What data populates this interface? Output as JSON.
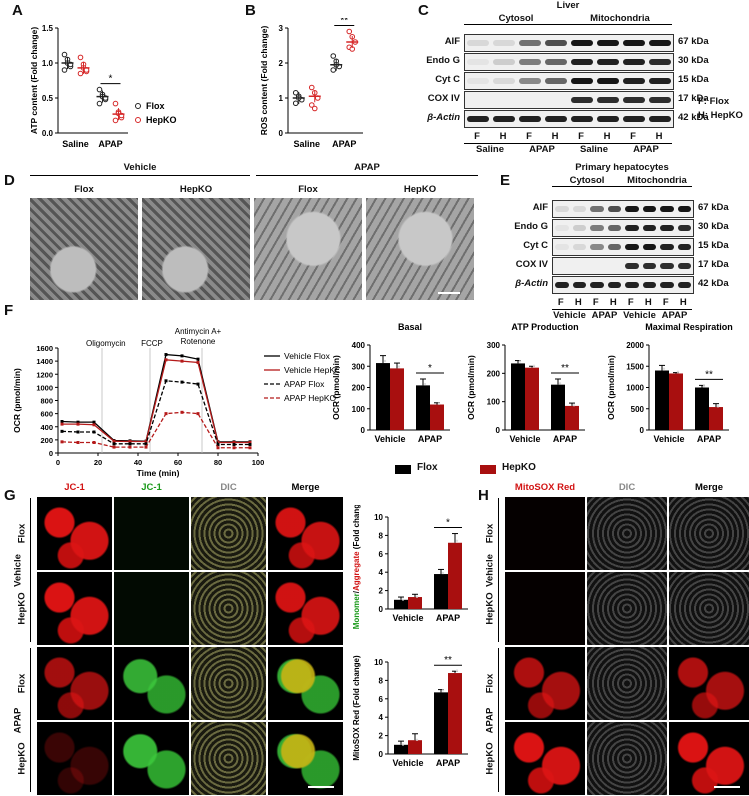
{
  "panels": {
    "A": "A",
    "B": "B",
    "C": "C",
    "D": "D",
    "E": "E",
    "F": "F",
    "G": "G",
    "H": "H"
  },
  "chart_data": [
    {
      "id": "A",
      "type": "scatter",
      "ylabel": "ATP content (Fold change)",
      "ylim": [
        0,
        1.5
      ],
      "yticks": [
        "0.0",
        "0.5",
        "1.0",
        "1.5"
      ],
      "categories": [
        "Saline",
        "APAP"
      ],
      "series": [
        {
          "name": "Flox",
          "color": "#222222",
          "mean": [
            1.0,
            0.52
          ],
          "points": [
            [
              1.12,
              1.05,
              0.95,
              0.9,
              1.0,
              0.98
            ],
            [
              0.62,
              0.55,
              0.48,
              0.42,
              0.52,
              0.5
            ]
          ]
        },
        {
          "name": "HepKO",
          "color": "#d62728",
          "mean": [
            0.93,
            0.27
          ],
          "points": [
            [
              1.08,
              0.98,
              0.88,
              0.85,
              0.93,
              0.9
            ],
            [
              0.42,
              0.3,
              0.22,
              0.18,
              0.28,
              0.25
            ]
          ]
        }
      ],
      "significance": [
        {
          "between": "APAP",
          "label": "*"
        }
      ],
      "legend": [
        "Flox",
        "HepKO"
      ]
    },
    {
      "id": "B",
      "type": "scatter",
      "ylabel": "ROS content (Fold change)",
      "ylim": [
        0,
        3
      ],
      "yticks": [
        "0",
        "1",
        "2",
        "3"
      ],
      "categories": [
        "Saline",
        "APAP"
      ],
      "series": [
        {
          "name": "Flox",
          "color": "#222222",
          "mean": [
            1.0,
            1.95
          ],
          "points": [
            [
              1.15,
              1.05,
              0.95,
              0.85,
              1.0
            ],
            [
              2.2,
              2.05,
              1.9,
              1.8,
              1.95
            ]
          ]
        },
        {
          "name": "HepKO",
          "color": "#d62728",
          "mean": [
            1.05,
            2.6
          ],
          "points": [
            [
              1.3,
              1.15,
              1.0,
              0.8,
              0.7
            ],
            [
              2.9,
              2.75,
              2.6,
              2.45,
              2.4
            ]
          ]
        }
      ],
      "significance": [
        {
          "between": "APAP",
          "label": "**"
        }
      ]
    },
    {
      "id": "F-Basal",
      "type": "bar",
      "title": "Basal",
      "ylabel": "OCR (pmol/min)",
      "ylim": [
        0,
        400
      ],
      "yticks": [
        "0",
        "100",
        "200",
        "300",
        "400"
      ],
      "categories": [
        "Vehicle",
        "APAP"
      ],
      "series": [
        {
          "name": "Flox",
          "color": "#000000",
          "values": [
            315,
            210
          ],
          "err": [
            35,
            30
          ]
        },
        {
          "name": "HepKO",
          "color": "#a80f0f",
          "values": [
            290,
            120
          ],
          "err": [
            25,
            8
          ]
        }
      ],
      "significance": [
        {
          "between": "APAP",
          "label": "*"
        }
      ]
    },
    {
      "id": "F-ATP",
      "type": "bar",
      "title": "ATP Production",
      "ylabel": "OCR (pmol/min)",
      "ylim": [
        0,
        300
      ],
      "yticks": [
        "0",
        "100",
        "200",
        "300"
      ],
      "categories": [
        "Vehicle",
        "APAP"
      ],
      "series": [
        {
          "name": "Flox",
          "color": "#000000",
          "values": [
            235,
            160
          ],
          "err": [
            10,
            20
          ]
        },
        {
          "name": "HepKO",
          "color": "#a80f0f",
          "values": [
            220,
            85
          ],
          "err": [
            5,
            10
          ]
        }
      ],
      "significance": [
        {
          "between": "APAP",
          "label": "**"
        }
      ]
    },
    {
      "id": "F-Max",
      "type": "bar",
      "title": "Maximal Respiration",
      "ylabel": "OCR (pmol/min)",
      "ylim": [
        0,
        2000
      ],
      "yticks": [
        "0",
        "500",
        "1000",
        "1500",
        "2000"
      ],
      "categories": [
        "Vehicle",
        "APAP"
      ],
      "series": [
        {
          "name": "Flox",
          "color": "#000000",
          "values": [
            1400,
            1000
          ],
          "err": [
            120,
            50
          ]
        },
        {
          "name": "HepKO",
          "color": "#a80f0f",
          "values": [
            1330,
            540
          ],
          "err": [
            20,
            80
          ]
        }
      ],
      "significance": [
        {
          "between": "APAP",
          "label": "**"
        }
      ]
    },
    {
      "id": "F-Timecourse",
      "type": "line",
      "xlabel": "Time (min)",
      "ylabel": "OCR (pmol/min)",
      "xlim": [
        0,
        100
      ],
      "ylim": [
        0,
        1600
      ],
      "xticks": [
        "0",
        "20",
        "40",
        "60",
        "80",
        "100"
      ],
      "yticks": [
        "0",
        "200",
        "400",
        "600",
        "800",
        "1000",
        "1200",
        "1400",
        "1600"
      ],
      "annotations": [
        "Oligomycin",
        "FCCP",
        "Antimycin A+ Rotenone"
      ],
      "x": [
        2,
        10,
        18,
        28,
        36,
        44,
        54,
        62,
        70,
        80,
        88,
        96
      ],
      "series": [
        {
          "name": "Vehicle Flox",
          "color": "#000000",
          "dash": false,
          "values": [
            480,
            470,
            470,
            190,
            185,
            180,
            1500,
            1480,
            1430,
            170,
            170,
            170
          ]
        },
        {
          "name": "Vehicle HepKO",
          "color": "#b51a1a",
          "dash": false,
          "values": [
            440,
            440,
            430,
            180,
            175,
            175,
            1420,
            1400,
            1380,
            160,
            160,
            160
          ]
        },
        {
          "name": "APAP Flox",
          "color": "#000000",
          "dash": true,
          "values": [
            330,
            320,
            320,
            140,
            140,
            140,
            1100,
            1080,
            1050,
            130,
            130,
            130
          ]
        },
        {
          "name": "APAP HepKO",
          "color": "#b51a1a",
          "dash": true,
          "values": [
            170,
            160,
            160,
            90,
            90,
            90,
            600,
            620,
            600,
            80,
            80,
            80
          ]
        }
      ]
    },
    {
      "id": "G-ratio",
      "type": "bar",
      "ylabel": "Monomer/Aggregate (Fold change)",
      "ylim": [
        0,
        10
      ],
      "yticks": [
        "0",
        "2",
        "4",
        "6",
        "8",
        "10"
      ],
      "categories": [
        "Vehicle",
        "APAP"
      ],
      "series": [
        {
          "name": "Flox",
          "color": "#000000",
          "values": [
            1.0,
            3.8
          ],
          "err": [
            0.3,
            0.5
          ]
        },
        {
          "name": "HepKO",
          "color": "#a80f0f",
          "values": [
            1.3,
            7.2
          ],
          "err": [
            0.3,
            1.0
          ]
        }
      ],
      "significance": [
        {
          "between": "APAP",
          "label": "*"
        }
      ]
    },
    {
      "id": "G-mitosox",
      "type": "bar",
      "ylabel": "MitoSOX Red (Fold change)",
      "ylim": [
        0,
        10
      ],
      "yticks": [
        "0",
        "2",
        "4",
        "6",
        "8",
        "10"
      ],
      "categories": [
        "Vehicle",
        "APAP"
      ],
      "series": [
        {
          "name": "Flox",
          "color": "#000000",
          "values": [
            1.0,
            6.7
          ],
          "err": [
            0.4,
            0.3
          ]
        },
        {
          "name": "HepKO",
          "color": "#a80f0f",
          "values": [
            1.5,
            8.8
          ],
          "err": [
            0.7,
            0.2
          ]
        }
      ],
      "significance": [
        {
          "between": "APAP",
          "label": "**"
        }
      ]
    }
  ],
  "legendF": [
    "Flox",
    "HepKO"
  ],
  "blotC": {
    "title": "Liver",
    "groups": [
      "Cytosol",
      "Mitochondria"
    ],
    "rows": [
      "AIF",
      "Endo G",
      "Cyt C",
      "COX IV",
      "β-Actin"
    ],
    "sizes": [
      "67 kDa",
      "30 kDa",
      "15 kDa",
      "17 kDa",
      "42 kDa"
    ],
    "lanes": [
      "F",
      "H",
      "F",
      "H",
      "F",
      "H",
      "F",
      "H"
    ],
    "conditions": [
      "Saline",
      "APAP",
      "Saline",
      "APAP"
    ],
    "key": [
      "F: Flox",
      "H: HepKO"
    ]
  },
  "blotE": {
    "title": "Primary hepatocytes",
    "groups": [
      "Cytosol",
      "Mitochondria"
    ],
    "rows": [
      "AIF",
      "Endo G",
      "Cyt C",
      "COX IV",
      "β-Actin"
    ],
    "sizes": [
      "67 kDa",
      "30 kDa",
      "15 kDa",
      "17 kDa",
      "42 kDa"
    ],
    "lanes": [
      "F",
      "H",
      "F",
      "H",
      "F",
      "H",
      "F",
      "H"
    ],
    "conditions": [
      "Vehicle",
      "APAP",
      "Vehicle",
      "APAP"
    ]
  },
  "panelD": {
    "groups": [
      "Vehicle",
      "APAP"
    ],
    "columns": [
      "Flox",
      "HepKO",
      "Flox",
      "HepKO"
    ]
  },
  "panelG": {
    "columns": [
      "JC-1",
      "JC-1",
      "DIC",
      "Merge"
    ],
    "column_colors": [
      "#d21414",
      "#1a9a1a",
      "#888888",
      "#000000"
    ],
    "groups": [
      "Vehicle",
      "APAP"
    ],
    "rows": [
      "Flox",
      "HepKO",
      "Flox",
      "HepKO"
    ]
  },
  "panelH": {
    "columns": [
      "MitoSOX Red",
      "DIC",
      "Merge"
    ],
    "column_colors": [
      "#d21414",
      "#888888",
      "#000000"
    ],
    "groups": [
      "Vehicle",
      "APAP"
    ],
    "rows": [
      "Flox",
      "HepKO",
      "Flox",
      "HepKO"
    ]
  }
}
